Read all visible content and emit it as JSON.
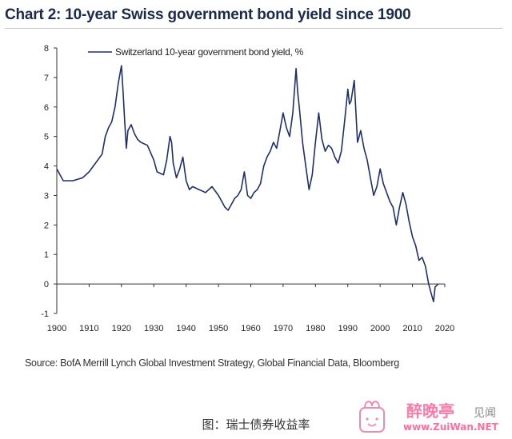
{
  "chart_data": {
    "type": "line",
    "title": "Chart 2: 10-year Swiss government bond yield since 1900",
    "xlabel": "",
    "ylabel": "",
    "xlim": [
      1900,
      2020
    ],
    "ylim": [
      -1,
      8
    ],
    "x_ticks": [
      "1900",
      "1910",
      "1920",
      "1930",
      "1940",
      "1950",
      "1960",
      "1970",
      "1980",
      "1990",
      "2000",
      "2010",
      "2020"
    ],
    "y_ticks": [
      "8",
      "7",
      "6",
      "5",
      "4",
      "3",
      "2",
      "1",
      "0",
      "-1"
    ],
    "legend_position": "top-left",
    "grid": false,
    "line_color": "#1f2f6b",
    "series": [
      {
        "name": "Switzerland 10-year government bond yield, %",
        "x": [
          1900,
          1901,
          1902,
          1905,
          1908,
          1910,
          1912,
          1914,
          1915,
          1916,
          1917,
          1918,
          1919,
          1920,
          1920.5,
          1921,
          1921.5,
          1922,
          1923,
          1924,
          1925,
          1926,
          1928,
          1930,
          1931,
          1933,
          1934,
          1935,
          1935.5,
          1936,
          1937,
          1938,
          1939,
          1940,
          1941,
          1942,
          1944,
          1946,
          1948,
          1950,
          1952,
          1953,
          1954,
          1955,
          1956,
          1957,
          1958,
          1959,
          1960,
          1961,
          1962,
          1963,
          1964,
          1965,
          1966,
          1967,
          1968,
          1969,
          1970,
          1971,
          1972,
          1973,
          1974,
          1974.5,
          1975,
          1976,
          1977,
          1978,
          1979,
          1980,
          1981,
          1982,
          1983,
          1984,
          1985,
          1986,
          1987,
          1988,
          1989,
          1990,
          1990.5,
          1991,
          1992,
          1993,
          1994,
          1995,
          1996,
          1997,
          1998,
          1999,
          2000,
          2001,
          2002,
          2003,
          2004,
          2005,
          2006,
          2007,
          2008,
          2009,
          2010,
          2011,
          2012,
          2013,
          2014,
          2015,
          2016,
          2016.5,
          2017,
          2018
        ],
        "values": [
          3.9,
          3.7,
          3.5,
          3.5,
          3.6,
          3.8,
          4.1,
          4.4,
          5.0,
          5.3,
          5.5,
          6.0,
          6.8,
          7.4,
          6.5,
          5.5,
          4.6,
          5.2,
          5.4,
          5.1,
          4.9,
          4.8,
          4.7,
          4.2,
          3.8,
          3.7,
          4.2,
          5.0,
          4.8,
          4.1,
          3.6,
          3.9,
          4.3,
          3.5,
          3.2,
          3.3,
          3.2,
          3.1,
          3.3,
          3.0,
          2.6,
          2.5,
          2.7,
          2.9,
          3.0,
          3.2,
          3.8,
          3.0,
          2.9,
          3.1,
          3.2,
          3.4,
          4.0,
          4.3,
          4.5,
          4.8,
          4.6,
          5.2,
          5.8,
          5.3,
          5.0,
          5.8,
          7.3,
          6.5,
          6.0,
          4.8,
          4.0,
          3.2,
          3.7,
          4.8,
          5.8,
          4.9,
          4.5,
          4.7,
          4.6,
          4.3,
          4.1,
          4.5,
          5.5,
          6.6,
          6.1,
          6.2,
          6.9,
          4.8,
          5.2,
          4.6,
          4.2,
          3.6,
          3.0,
          3.3,
          3.9,
          3.4,
          3.1,
          2.8,
          2.6,
          2.0,
          2.6,
          3.1,
          2.7,
          2.1,
          1.6,
          1.3,
          0.8,
          0.9,
          0.6,
          0.0,
          -0.4,
          -0.6,
          -0.1,
          0.0
        ]
      }
    ]
  },
  "source_text": "Source: BofA Merrill Lynch Global Investment Strategy, Global Financial Data, Bloomberg",
  "caption": "图：瑞士债券收益率",
  "watermark": {
    "brand": "醉晚亭",
    "url": "www.ZuiWan.NET",
    "overlay": "见闻"
  }
}
